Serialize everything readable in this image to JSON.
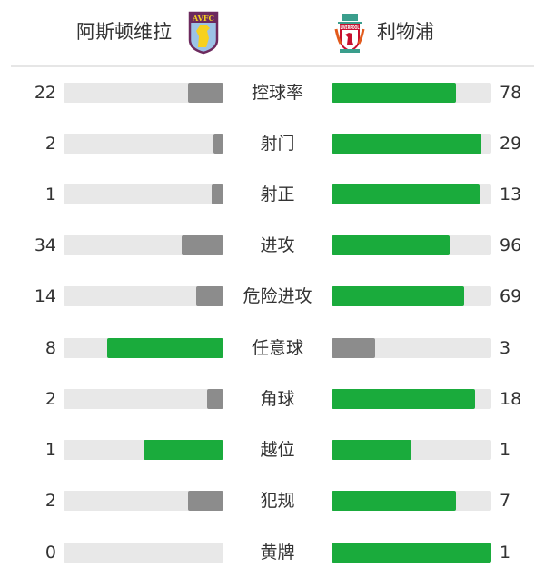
{
  "header": {
    "home_team": "阿斯顿维拉",
    "away_team": "利物浦",
    "home_logo_text": "AVFC",
    "away_logo_text": "LIVERPOOL"
  },
  "colors": {
    "leader": "#1aab3c",
    "trailer": "#8c8c8c",
    "track": "#e8e8e8"
  },
  "stats": [
    {
      "label": "控球率",
      "home": 22,
      "away": 78
    },
    {
      "label": "射门",
      "home": 2,
      "away": 29
    },
    {
      "label": "射正",
      "home": 1,
      "away": 13
    },
    {
      "label": "进攻",
      "home": 34,
      "away": 96
    },
    {
      "label": "危险进攻",
      "home": 14,
      "away": 69
    },
    {
      "label": "任意球",
      "home": 8,
      "away": 3
    },
    {
      "label": "角球",
      "home": 2,
      "away": 18
    },
    {
      "label": "越位",
      "home": 1,
      "away": 1
    },
    {
      "label": "犯规",
      "home": 2,
      "away": 7
    },
    {
      "label": "黄牌",
      "home": 0,
      "away": 1
    }
  ]
}
